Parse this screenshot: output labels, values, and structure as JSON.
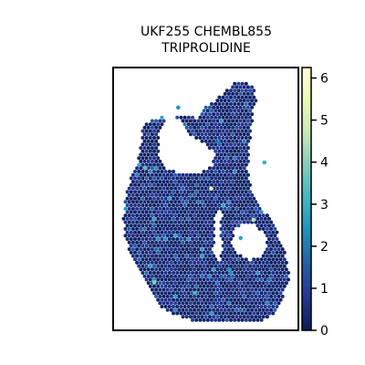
{
  "chart_data": {
    "type": "scatter",
    "subtype": "spatial hexbin expression map",
    "title_lines": [
      "UKF255 CHEMBL855",
      "TRIPROLIDINE"
    ],
    "xlabel": "",
    "ylabel": "",
    "axes_ticks": false,
    "grid": false,
    "colormap": "YlGnBu_r",
    "colorbar": {
      "label": "",
      "range": [
        0,
        6.25
      ],
      "ticks": [
        0,
        1,
        2,
        3,
        4,
        5,
        6
      ],
      "tick_labels": [
        "0",
        "1",
        "2",
        "3",
        "4",
        "5",
        "6"
      ],
      "location": "right"
    },
    "value_summary": {
      "background_value": 0.2,
      "typical_range": [
        0,
        1.5
      ],
      "max_value": 6.2
    },
    "highlights": [
      {
        "x": 0.17,
        "y": 0.38,
        "value": 3.5
      },
      {
        "x": 0.53,
        "y": 0.46,
        "value": 5.5
      },
      {
        "x": 0.22,
        "y": 0.82,
        "value": 4.0
      },
      {
        "x": 0.44,
        "y": 0.86,
        "value": 3.2
      },
      {
        "x": 0.69,
        "y": 0.65,
        "value": 2.8
      },
      {
        "x": 0.76,
        "y": 0.58,
        "value": 4.5
      },
      {
        "x": 0.35,
        "y": 0.15,
        "value": 2.5
      },
      {
        "x": 0.57,
        "y": 0.28,
        "value": 2.2
      },
      {
        "x": 0.63,
        "y": 0.77,
        "value": 2.5
      },
      {
        "x": 0.82,
        "y": 0.36,
        "value": 3.0
      }
    ]
  },
  "colors": {
    "frame": "#000000",
    "cmap_stops": [
      "#081d58",
      "#253494",
      "#225ea8",
      "#1d91c0",
      "#41b6c4",
      "#7fcdbb",
      "#c7e9b4",
      "#edf8b1",
      "#ffffd9"
    ]
  }
}
